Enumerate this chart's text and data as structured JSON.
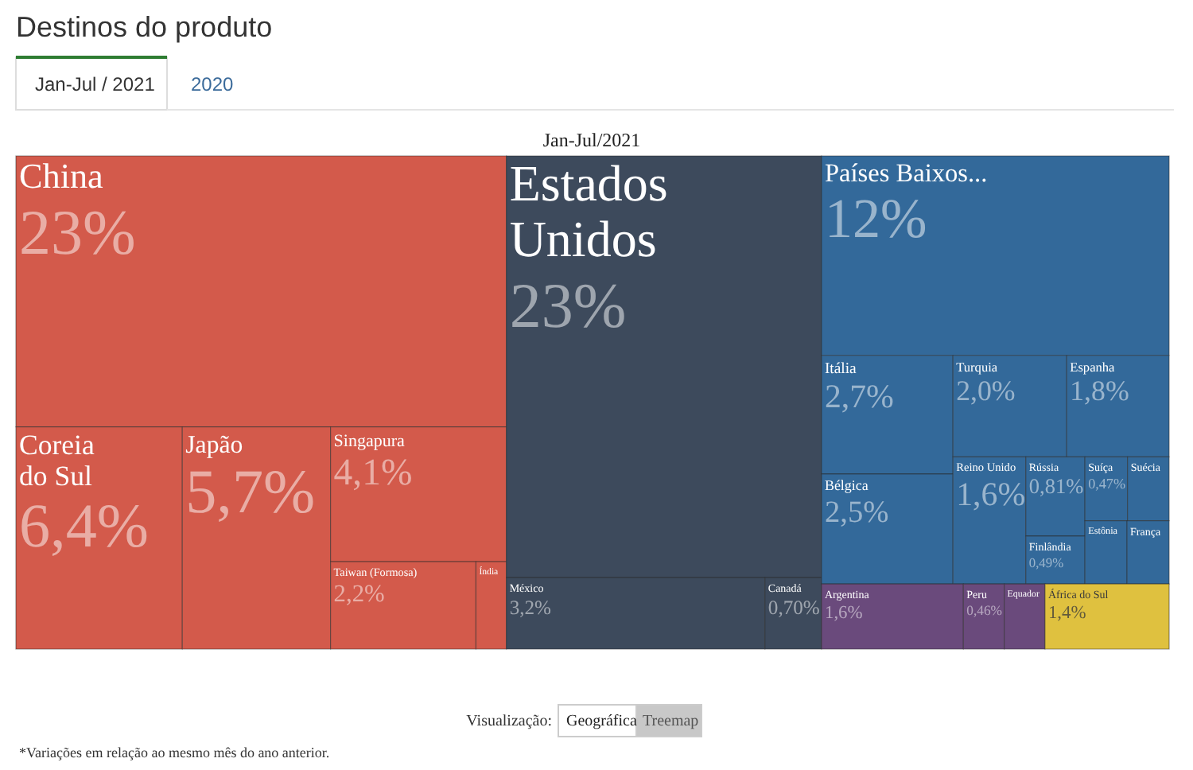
{
  "chart_data": {
    "type": "other",
    "title": "Destinos do produto",
    "subtitle": "Jan-Jul/2021",
    "categories": [
      "China",
      "Coreia do Sul",
      "Japão",
      "Singapura",
      "Taiwan (Formosa)",
      "Índia",
      "Estados Unidos",
      "México",
      "Canadá",
      "Países Baixos...",
      "Itália",
      "Bélgica",
      "Turquia",
      "Espanha",
      "Reino Unido",
      "Rússia",
      "Finlândia",
      "Suíça",
      "Suécia",
      "Estônia",
      "França",
      "Argentina",
      "Peru",
      "Equador",
      "África do Sul"
    ],
    "values": [
      23,
      6.4,
      5.7,
      4.1,
      2.2,
      null,
      23,
      3.2,
      0.7,
      12,
      2.7,
      2.5,
      2.0,
      1.8,
      1.6,
      0.81,
      0.49,
      0.47,
      null,
      null,
      null,
      1.6,
      0.46,
      null,
      1.4
    ],
    "value_labels": [
      "23%",
      "6,4%",
      "5,7%",
      "4,1%",
      "2,2%",
      null,
      "23%",
      "3,2%",
      "0,70%",
      "12%",
      "2,7%",
      "2,5%",
      "2,0%",
      "1,8%",
      "1,6%",
      "0,81%",
      "0,49%",
      "0,47%",
      null,
      null,
      null,
      "1,6%",
      "0,46%",
      null,
      "1,4%"
    ],
    "colors": [
      "#d35a4b",
      "#d35a4b",
      "#d35a4b",
      "#d35a4b",
      "#d35a4b",
      "#d35a4b",
      "#3d4a5c",
      "#3d4a5c",
      "#3d4a5c",
      "#33699a",
      "#33699a",
      "#33699a",
      "#33699a",
      "#33699a",
      "#33699a",
      "#33699a",
      "#33699a",
      "#33699a",
      "#33699a",
      "#33699a",
      "#33699a",
      "#6a4a7c",
      "#6a4a7c",
      "#6a4a7c",
      "#dfc13f"
    ],
    "annotations": [
      "Jan-Jul / 2021",
      "2020",
      "Visualização:",
      "Geográfica",
      "Treemap",
      "*Variações em relação ao mesmo mês do ano anterior."
    ]
  }
}
